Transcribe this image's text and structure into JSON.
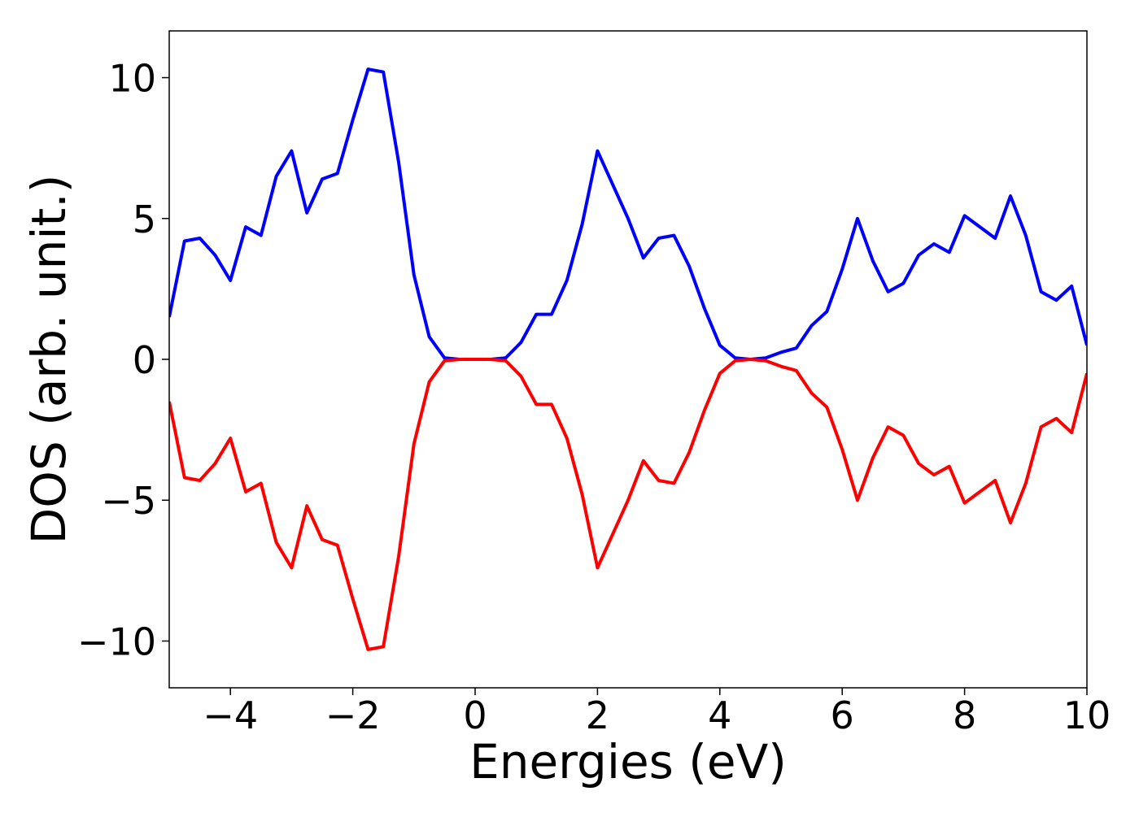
{
  "chart_data": {
    "type": "line",
    "xlabel": "Energies (eV)",
    "ylabel": "DOS (arb. unit.)",
    "x": [
      -5,
      -4.75,
      -4.5,
      -4.25,
      -4,
      -3.75,
      -3.5,
      -3.25,
      -3,
      -2.75,
      -2.5,
      -2.25,
      -2,
      -1.75,
      -1.5,
      -1.25,
      -1,
      -0.75,
      -0.5,
      -0.25,
      0,
      0.25,
      0.5,
      0.75,
      1,
      1.25,
      1.5,
      1.75,
      2,
      2.25,
      2.5,
      2.75,
      3,
      3.25,
      3.5,
      3.75,
      4,
      4.25,
      4.5,
      4.75,
      5,
      5.25,
      5.5,
      5.75,
      6,
      6.25,
      6.5,
      6.75,
      7,
      7.25,
      7.5,
      7.75,
      8,
      8.25,
      8.5,
      8.75,
      9,
      9.25,
      9.5,
      9.75,
      10
    ],
    "series": [
      {
        "color": "#0000ff",
        "values": [
          1.5,
          4.2,
          4.3,
          3.7,
          2.8,
          4.7,
          4.4,
          6.5,
          7.4,
          5.2,
          6.4,
          6.6,
          8.5,
          10.3,
          10.2,
          7.0,
          3.0,
          0.8,
          0.05,
          0,
          0,
          0,
          0.05,
          0.6,
          1.6,
          1.6,
          2.8,
          4.8,
          7.4,
          6.2,
          5.0,
          3.6,
          4.3,
          4.4,
          3.3,
          1.8,
          0.5,
          0.05,
          0,
          0.05,
          0.25,
          0.4,
          1.2,
          1.7,
          3.2,
          5.0,
          3.5,
          2.4,
          2.7,
          3.7,
          4.1,
          3.8,
          5.1,
          4.7,
          4.3,
          5.8,
          4.4,
          2.4,
          2.1,
          2.6,
          0.5
        ]
      },
      {
        "color": "#ff0000",
        "values": [
          -1.5,
          -4.2,
          -4.3,
          -3.7,
          -2.8,
          -4.7,
          -4.4,
          -6.5,
          -7.4,
          -5.2,
          -6.4,
          -6.6,
          -8.5,
          -10.3,
          -10.2,
          -7.0,
          -3.0,
          -0.8,
          -0.05,
          0,
          0,
          0,
          -0.05,
          -0.6,
          -1.6,
          -1.6,
          -2.8,
          -4.8,
          -7.4,
          -6.2,
          -5.0,
          -3.6,
          -4.3,
          -4.4,
          -3.3,
          -1.8,
          -0.5,
          -0.05,
          0,
          -0.05,
          -0.25,
          -0.4,
          -1.2,
          -1.7,
          -3.2,
          -5.0,
          -3.5,
          -2.4,
          -2.7,
          -3.7,
          -4.1,
          -3.8,
          -5.1,
          -4.7,
          -4.3,
          -5.8,
          -4.4,
          -2.4,
          -2.1,
          -2.6,
          -0.5
        ]
      }
    ],
    "xlim": [
      -5,
      10
    ],
    "ylim": [
      -11.66,
      11.66
    ],
    "xticks": [
      {
        "value": -4,
        "label": "−4"
      },
      {
        "value": -2,
        "label": "−2"
      },
      0,
      2,
      4,
      6,
      8,
      10
    ],
    "yticks": [
      {
        "value": -10,
        "label": "−10"
      },
      {
        "value": -5,
        "label": "−5"
      },
      0,
      5,
      10
    ]
  }
}
